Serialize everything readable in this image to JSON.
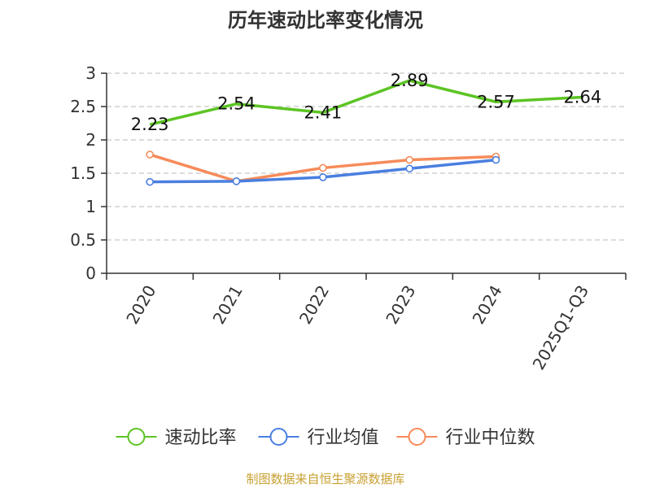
{
  "chart_data": {
    "type": "line",
    "title": "历年速动比率变化情况",
    "categories": [
      "2020",
      "2021",
      "2022",
      "2023",
      "2024",
      "2025Q1-Q3"
    ],
    "yticks": [
      "0",
      "0.5",
      "1",
      "1.5",
      "2",
      "2.5",
      "3"
    ],
    "ylim": [
      0,
      3
    ],
    "grid": true,
    "legend_position": "bottom",
    "series": [
      {
        "name": "速动比率",
        "color": "#5cc424",
        "values": [
          2.23,
          2.54,
          2.41,
          2.89,
          2.57,
          2.64
        ],
        "labels": [
          "2.23",
          "2.54",
          "2.41",
          "2.89",
          "2.57",
          "2.64"
        ]
      },
      {
        "name": "行业均值",
        "color": "#4a7fe0",
        "values": [
          1.37,
          1.38,
          1.44,
          1.57,
          1.7,
          null
        ]
      },
      {
        "name": "行业中位数",
        "color": "#f68b5a",
        "values": [
          1.78,
          1.38,
          1.58,
          1.7,
          1.75,
          null
        ]
      }
    ],
    "source": "制图数据来自恒生聚源数据库"
  }
}
